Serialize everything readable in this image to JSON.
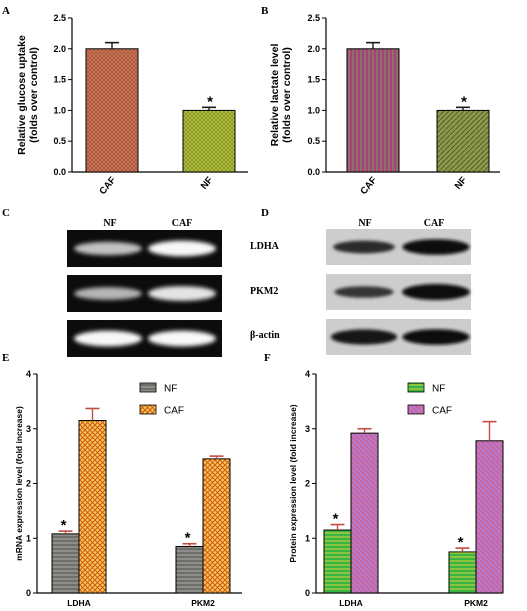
{
  "panels": {
    "A": "A",
    "B": "B",
    "C": "C",
    "D": "D",
    "E": "E",
    "F": "F"
  },
  "colors": {
    "caf_a": "#cf7a5c",
    "nf_a": "#b4c23f",
    "caf_b": "#a8407c",
    "nf_b": "#8e9a4a",
    "nf_e": "#8d8d8a",
    "caf_e": "#f3c94a",
    "nf_f": "#3bb445",
    "caf_f": "#b579d1",
    "error": "#c24c40",
    "gel_bg": "#0c0c0c",
    "blot_bg": "#cdcdcd"
  },
  "chart_data": [
    {
      "id": "A",
      "type": "bar",
      "categories": [
        "CAF",
        "NF"
      ],
      "values": [
        2.0,
        1.0
      ],
      "errors": [
        0.1,
        0.05
      ],
      "significant": [
        false,
        true
      ],
      "sig_marker": "*",
      "ylabel": "Relative glucose uptake\n(folds over control)",
      "ylim": [
        0,
        2.5
      ],
      "yticks": [
        "0.0",
        "0.5",
        "1.0",
        "1.5",
        "2.0",
        "2.5"
      ]
    },
    {
      "id": "B",
      "type": "bar",
      "categories": [
        "CAF",
        "NF"
      ],
      "values": [
        2.0,
        1.0
      ],
      "errors": [
        0.1,
        0.05
      ],
      "significant": [
        false,
        true
      ],
      "sig_marker": "*",
      "ylabel": "Relative lactate level\n(folds over control)",
      "ylim": [
        0,
        2.5
      ],
      "yticks": [
        "0.0",
        "0.5",
        "1.0",
        "1.5",
        "2.0",
        "2.5"
      ]
    },
    {
      "id": "E",
      "type": "bar",
      "categories": [
        "LDHA",
        "PKM2"
      ],
      "series": [
        {
          "name": "NF",
          "values": [
            1.08,
            0.85
          ],
          "errors": [
            0.05,
            0.05
          ],
          "significant": [
            true,
            true
          ]
        },
        {
          "name": "CAF",
          "values": [
            3.15,
            2.45
          ],
          "errors": [
            0.22,
            0.05
          ],
          "significant": [
            false,
            false
          ]
        }
      ],
      "sig_marker": "*",
      "ylabel": "mRNA expression level (fold increase)",
      "ylim": [
        0,
        4
      ],
      "yticks": [
        "0",
        "1",
        "2",
        "3",
        "4"
      ],
      "legend": "top-left"
    },
    {
      "id": "F",
      "type": "bar",
      "categories": [
        "LDHA",
        "PKM2"
      ],
      "series": [
        {
          "name": "NF",
          "values": [
            1.15,
            0.75
          ],
          "errors": [
            0.1,
            0.07
          ],
          "significant": [
            true,
            true
          ]
        },
        {
          "name": "CAF",
          "values": [
            2.92,
            2.78
          ],
          "errors": [
            0.08,
            0.35
          ],
          "significant": [
            false,
            false
          ]
        }
      ],
      "sig_marker": "*",
      "ylabel": "Protein expression level (fold increase)",
      "ylim": [
        0,
        4
      ],
      "yticks": [
        "0",
        "1",
        "2",
        "3",
        "4"
      ],
      "legend": "top-left"
    }
  ],
  "gel_c": {
    "lanes": [
      "NF",
      "CAF"
    ],
    "rows": [
      {
        "name": "row1",
        "intensity": [
          0.55,
          0.95
        ]
      },
      {
        "name": "row2",
        "intensity": [
          0.45,
          0.8
        ]
      },
      {
        "name": "row3",
        "intensity": [
          0.95,
          0.95
        ]
      }
    ]
  },
  "blot_d": {
    "lanes": [
      "NF",
      "CAF"
    ],
    "rows": [
      {
        "name": "LDHA",
        "intensity": [
          0.6,
          0.95
        ]
      },
      {
        "name": "PKM2",
        "intensity": [
          0.45,
          1.0
        ]
      },
      {
        "name": "β-actin",
        "intensity": [
          0.9,
          0.95
        ]
      }
    ]
  }
}
